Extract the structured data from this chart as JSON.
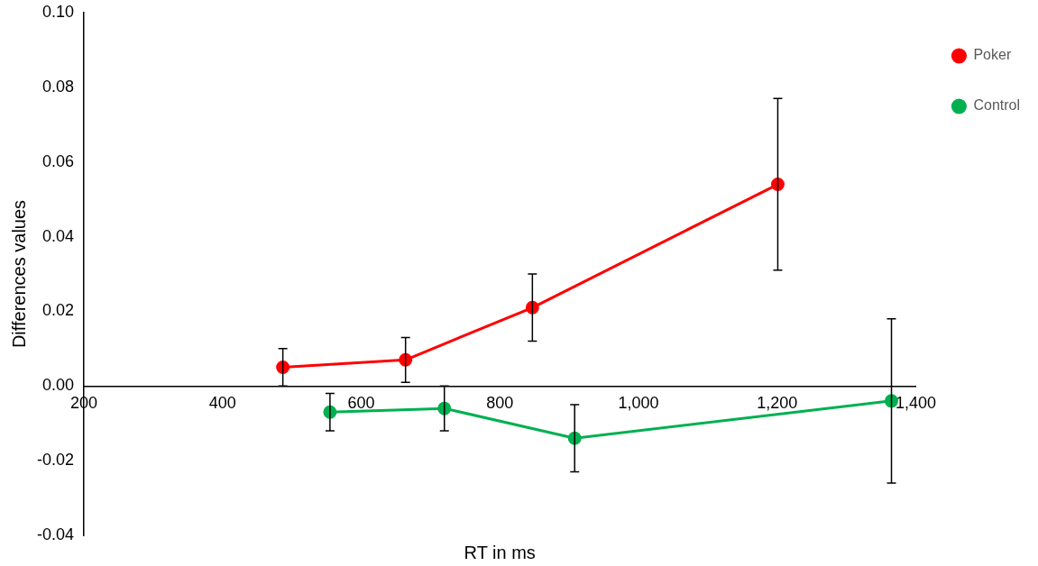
{
  "chart_data": {
    "type": "line",
    "xlabel": "RT in ms",
    "ylabel": "Differences values",
    "xlim": [
      200,
      1400
    ],
    "xticks": [
      200,
      400,
      600,
      800,
      {
        "value": 1000,
        "label": "1,000"
      },
      {
        "value": 1200,
        "label": "1,200"
      },
      {
        "value": 1400,
        "label": "1,400"
      }
    ],
    "ylim": [
      -0.04,
      0.1
    ],
    "yticks": [
      {
        "value": -0.04,
        "label": "-0.04"
      },
      {
        "value": -0.02,
        "label": "-0.02"
      },
      {
        "value": 0,
        "label": "0.00"
      },
      {
        "value": 0.02,
        "label": "0.02"
      },
      {
        "value": 0.04,
        "label": "0.04"
      },
      {
        "value": 0.06,
        "label": "0.06"
      },
      {
        "value": 0.08,
        "label": "0.08"
      },
      {
        "value": 0.1,
        "label": "0.10"
      }
    ],
    "grid": false,
    "legend": "top right",
    "marker": "circle",
    "line_style": "solid",
    "series": [
      {
        "name": "Poker",
        "color": "#ff0000",
        "x": [
          487,
          664,
          847,
          1201
        ],
        "values": [
          0.005,
          0.007,
          0.021,
          0.054
        ],
        "errors": [
          0.005,
          0.006,
          0.009,
          0.023
        ]
      },
      {
        "name": "Control",
        "color": "#00b050",
        "x": [
          555,
          720,
          908,
          1365
        ],
        "values": [
          -0.007,
          -0.006,
          -0.014,
          -0.004
        ],
        "errors": [
          0.005,
          0.006,
          0.009,
          0.022
        ]
      }
    ]
  }
}
